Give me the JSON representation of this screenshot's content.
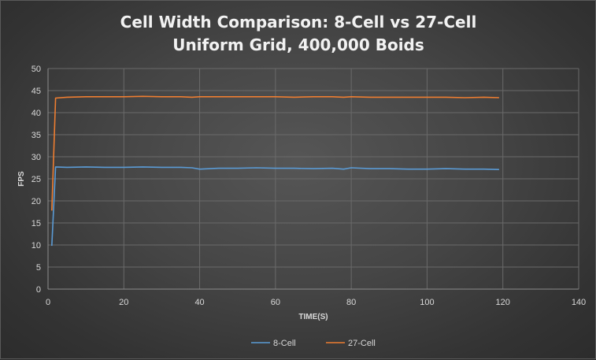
{
  "chart_data": {
    "type": "line",
    "title": "Cell Width Comparison: 8-Cell vs 27-Cell",
    "subtitle": "Uniform Grid, 400,000 Boids",
    "xlabel": "TIME(S)",
    "ylabel": "FPS",
    "xlim": [
      0,
      140
    ],
    "ylim": [
      0,
      50
    ],
    "x_ticks": [
      "0",
      "20",
      "40",
      "60",
      "80",
      "100",
      "120",
      "140"
    ],
    "y_ticks": [
      "0",
      "5",
      "10",
      "15",
      "20",
      "25",
      "30",
      "35",
      "40",
      "45",
      "50"
    ],
    "grid": true,
    "legend_position": "bottom",
    "x": [
      1,
      2,
      5,
      10,
      15,
      20,
      25,
      30,
      35,
      38,
      40,
      45,
      50,
      55,
      60,
      65,
      70,
      75,
      78,
      80,
      85,
      90,
      95,
      100,
      105,
      110,
      115,
      119
    ],
    "series": [
      {
        "name": "8-Cell",
        "color": "#5b9bd5",
        "values": [
          9.8,
          27.7,
          27.6,
          27.7,
          27.6,
          27.6,
          27.7,
          27.6,
          27.6,
          27.5,
          27.2,
          27.4,
          27.4,
          27.5,
          27.4,
          27.4,
          27.3,
          27.4,
          27.2,
          27.5,
          27.3,
          27.3,
          27.2,
          27.2,
          27.3,
          27.2,
          27.2,
          27.1
        ]
      },
      {
        "name": "27-Cell",
        "color": "#ed7d31",
        "values": [
          17.8,
          43.3,
          43.5,
          43.6,
          43.6,
          43.6,
          43.7,
          43.6,
          43.6,
          43.5,
          43.6,
          43.6,
          43.6,
          43.6,
          43.6,
          43.5,
          43.6,
          43.6,
          43.5,
          43.6,
          43.5,
          43.5,
          43.5,
          43.5,
          43.5,
          43.4,
          43.5,
          43.4
        ]
      }
    ]
  }
}
